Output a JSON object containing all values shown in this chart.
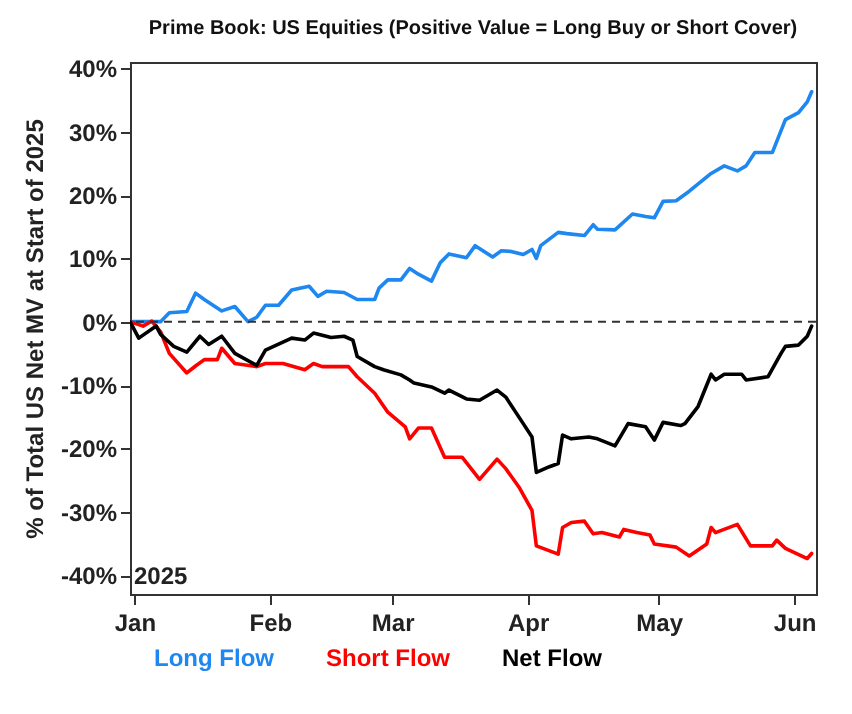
{
  "chart_data": {
    "type": "line",
    "title": "Prime Book: US Equities (Positive Value = Long Buy or Short Cover)",
    "ylabel": "% of Total US Net MV at Start of 2025",
    "xlim": [
      "2024-12-31",
      "2025-06-06"
    ],
    "ylim": [
      -43,
      41
    ],
    "xticks": [
      {
        "value": "2025-01-01",
        "label": "Jan"
      },
      {
        "value": "2025-02-01",
        "label": "Feb"
      },
      {
        "value": "2025-03-01",
        "label": "Mar"
      },
      {
        "value": "2025-04-01",
        "label": "Apr"
      },
      {
        "value": "2025-05-01",
        "label": "May"
      },
      {
        "value": "2025-06-01",
        "label": "Jun"
      }
    ],
    "yticks": [
      {
        "value": 40,
        "label": "40%"
      },
      {
        "value": 30,
        "label": "30%"
      },
      {
        "value": 20,
        "label": "20%"
      },
      {
        "value": 10,
        "label": "10%"
      },
      {
        "value": 0,
        "label": "0%"
      },
      {
        "value": -10,
        "label": "-10%"
      },
      {
        "value": -20,
        "label": "-20%"
      },
      {
        "value": -30,
        "label": "-30%"
      },
      {
        "value": -40,
        "label": "-40%"
      }
    ],
    "grid": false,
    "legend": "bottom",
    "line_style": "solid",
    "annotations": [
      "2025"
    ],
    "ref_lines": [
      {
        "axis": "y",
        "value": 0,
        "label": null,
        "color": "#333333",
        "line_style": "dashed"
      }
    ],
    "series": [
      {
        "name": "Long Flow",
        "color": "#1e88f0",
        "x": [
          "2024-12-31",
          "2025-01-07",
          "2025-01-09",
          "2025-01-13",
          "2025-01-15",
          "2025-01-17",
          "2025-01-21",
          "2025-01-24",
          "2025-01-27",
          "2025-01-29",
          "2025-01-31",
          "2025-02-03",
          "2025-02-06",
          "2025-02-10",
          "2025-02-12",
          "2025-02-14",
          "2025-02-18",
          "2025-02-21",
          "2025-02-25",
          "2025-02-26",
          "2025-02-28",
          "2025-03-03",
          "2025-03-05",
          "2025-03-07",
          "2025-03-10",
          "2025-03-12",
          "2025-03-14",
          "2025-03-18",
          "2025-03-20",
          "2025-03-24",
          "2025-03-26",
          "2025-03-28",
          "2025-03-31",
          "2025-04-02",
          "2025-04-03",
          "2025-04-04",
          "2025-04-08",
          "2025-04-10",
          "2025-04-14",
          "2025-04-16",
          "2025-04-17",
          "2025-04-21",
          "2025-04-25",
          "2025-04-28",
          "2025-04-30",
          "2025-05-02",
          "2025-05-05",
          "2025-05-08",
          "2025-05-13",
          "2025-05-16",
          "2025-05-19",
          "2025-05-21",
          "2025-05-23",
          "2025-05-27",
          "2025-05-30",
          "2025-06-02",
          "2025-06-04",
          "2025-06-05"
        ],
        "values": [
          0,
          0,
          1.4,
          1.6,
          4.5,
          3.5,
          1.7,
          2.4,
          0,
          0.7,
          2.6,
          2.6,
          5,
          5.6,
          4,
          4.8,
          4.6,
          3.5,
          3.5,
          5.3,
          6.6,
          6.6,
          8.4,
          7.5,
          6.4,
          9.3,
          10.7,
          10.1,
          12,
          10.2,
          11.2,
          11.1,
          10.6,
          11.4,
          10,
          12,
          14.1,
          13.9,
          13.6,
          15.3,
          14.6,
          14.5,
          17,
          16.6,
          16.4,
          19,
          19.1,
          20.6,
          23.4,
          24.6,
          23.8,
          24.6,
          26.7,
          26.7,
          31.9,
          33,
          34.7,
          36.3
        ]
      },
      {
        "name": "Short Flow",
        "color": "#ff0000",
        "x": [
          "2024-12-31",
          "2025-01-03",
          "2025-01-05",
          "2025-01-07",
          "2025-01-09",
          "2025-01-13",
          "2025-01-15",
          "2025-01-17",
          "2025-01-20",
          "2025-01-21",
          "2025-01-24",
          "2025-01-29",
          "2025-01-31",
          "2025-02-04",
          "2025-02-09",
          "2025-02-11",
          "2025-02-13",
          "2025-02-19",
          "2025-02-21",
          "2025-02-25",
          "2025-02-28",
          "2025-03-04",
          "2025-03-05",
          "2025-03-07",
          "2025-03-10",
          "2025-03-13",
          "2025-03-17",
          "2025-03-21",
          "2025-03-25",
          "2025-03-27",
          "2025-03-30",
          "2025-04-02",
          "2025-04-03",
          "2025-04-08",
          "2025-04-09",
          "2025-04-11",
          "2025-04-14",
          "2025-04-16",
          "2025-04-18",
          "2025-04-22",
          "2025-04-23",
          "2025-04-26",
          "2025-04-29",
          "2025-04-30",
          "2025-05-05",
          "2025-05-08",
          "2025-05-12",
          "2025-05-13",
          "2025-05-14",
          "2025-05-19",
          "2025-05-22",
          "2025-05-27",
          "2025-05-28",
          "2025-05-30",
          "2025-06-04",
          "2025-06-05"
        ],
        "values": [
          0,
          -0.7,
          0.1,
          -1.6,
          -5,
          -8.1,
          -7,
          -6,
          -6,
          -4.2,
          -6.6,
          -7.1,
          -6.6,
          -6.6,
          -7.6,
          -6.6,
          -7.1,
          -7.1,
          -8.7,
          -11.3,
          -14.3,
          -16.6,
          -18.5,
          -16.8,
          -16.8,
          -21.4,
          -21.4,
          -24.9,
          -21.7,
          -23.2,
          -26.1,
          -29.8,
          -35.4,
          -36.7,
          -32.5,
          -31.7,
          -31.5,
          -33.5,
          -33.3,
          -34,
          -32.8,
          -33.3,
          -33.7,
          -35.1,
          -35.6,
          -37,
          -35.1,
          -32.5,
          -33.3,
          -32,
          -35.4,
          -35.4,
          -34.5,
          -35.8,
          -37.4,
          -36.6
        ]
      },
      {
        "name": "Net Flow",
        "color": "#000000",
        "x": [
          "2024-12-31",
          "2025-01-02",
          "2025-01-06",
          "2025-01-07",
          "2025-01-10",
          "2025-01-13",
          "2025-01-16",
          "2025-01-18",
          "2025-01-21",
          "2025-01-24",
          "2025-01-29",
          "2025-01-31",
          "2025-02-06",
          "2025-02-09",
          "2025-02-11",
          "2025-02-15",
          "2025-02-18",
          "2025-02-20",
          "2025-02-21",
          "2025-02-25",
          "2025-02-27",
          "2025-03-03",
          "2025-03-05",
          "2025-03-06",
          "2025-03-10",
          "2025-03-13",
          "2025-03-14",
          "2025-03-18",
          "2025-03-21",
          "2025-03-25",
          "2025-03-27",
          "2025-03-31",
          "2025-04-02",
          "2025-04-03",
          "2025-04-06",
          "2025-04-08",
          "2025-04-09",
          "2025-04-11",
          "2025-04-15",
          "2025-04-17",
          "2025-04-21",
          "2025-04-24",
          "2025-04-28",
          "2025-04-30",
          "2025-05-02",
          "2025-05-06",
          "2025-05-07",
          "2025-05-10",
          "2025-05-13",
          "2025-05-14",
          "2025-05-16",
          "2025-05-20",
          "2025-05-21",
          "2025-05-26",
          "2025-05-29",
          "2025-05-30",
          "2025-06-02",
          "2025-06-04",
          "2025-06-05"
        ],
        "values": [
          0,
          -2.6,
          -0.7,
          -2,
          -3.9,
          -4.8,
          -2.3,
          -3.6,
          -2.3,
          -5,
          -6.9,
          -4.5,
          -2.6,
          -2.9,
          -1.8,
          -2.5,
          -2.3,
          -2.9,
          -5.5,
          -7.1,
          -7.6,
          -8.4,
          -9.2,
          -9.7,
          -10.3,
          -11.3,
          -10.8,
          -12.2,
          -12.4,
          -10.8,
          -11.9,
          -16.1,
          -18.2,
          -23.8,
          -22.9,
          -22.4,
          -17.9,
          -18.5,
          -18.2,
          -18.5,
          -19.6,
          -16.1,
          -16.6,
          -18.7,
          -15.9,
          -16.4,
          -16.1,
          -13.4,
          -8.3,
          -9.2,
          -8.3,
          -8.3,
          -9.2,
          -8.7,
          -5,
          -3.9,
          -3.7,
          -2.3,
          -0.7
        ]
      }
    ]
  }
}
